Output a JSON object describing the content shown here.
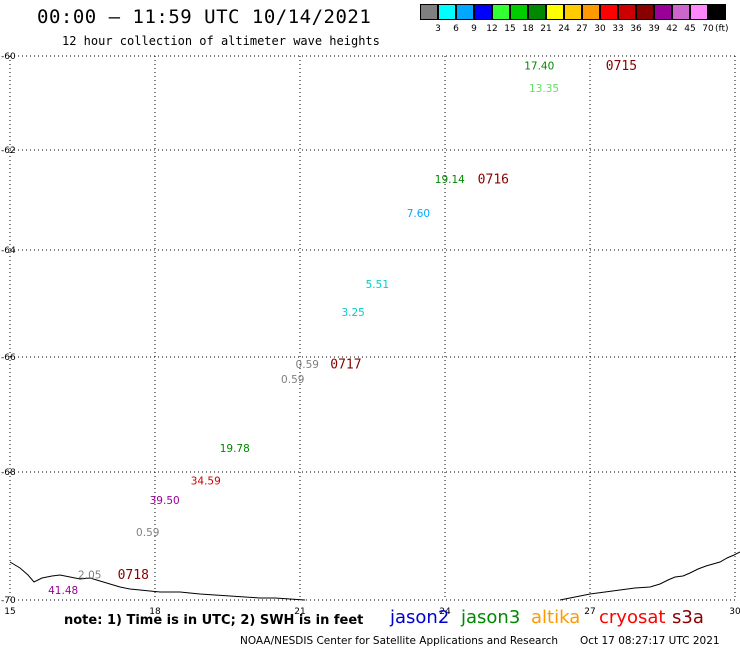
{
  "header": {
    "title": "00:00 – 11:59 UTC 10/14/2021",
    "subtitle": "12 hour collection of altimeter wave heights"
  },
  "legend": {
    "unit": "(ft)",
    "swatches": [
      {
        "color": "#808080",
        "label": "3"
      },
      {
        "color": "#00ffff",
        "label": "6"
      },
      {
        "color": "#00a8ff",
        "label": "9"
      },
      {
        "color": "#0000ff",
        "label": "12"
      },
      {
        "color": "#33ff33",
        "label": "15"
      },
      {
        "color": "#00cc00",
        "label": "18"
      },
      {
        "color": "#008800",
        "label": "21"
      },
      {
        "color": "#ffff00",
        "label": "24"
      },
      {
        "color": "#ffcc00",
        "label": "27"
      },
      {
        "color": "#ff9900",
        "label": "30"
      },
      {
        "color": "#ff0000",
        "label": "33"
      },
      {
        "color": "#cc0000",
        "label": "36"
      },
      {
        "color": "#880000",
        "label": "39"
      },
      {
        "color": "#990099",
        "label": "42"
      },
      {
        "color": "#cc66cc",
        "label": "45"
      },
      {
        "color": "#ff88ff",
        "label": "70"
      },
      {
        "color": "#000000",
        "label": ""
      }
    ]
  },
  "map": {
    "lon_range": [
      15,
      30
    ],
    "lat_range": [
      -70,
      -60
    ],
    "lon_ticks": [
      "15",
      "18",
      "21",
      "24",
      "27",
      "30"
    ],
    "lat_ticks": [
      "-60",
      "-62",
      "-64",
      "-66",
      "-68",
      "-70"
    ],
    "observations": [
      {
        "text": "17.40",
        "lon": 25.95,
        "lat": -60.22,
        "color": "#008800"
      },
      {
        "text": "0715",
        "lon": 27.65,
        "lat": -60.22,
        "color": "#880000",
        "pass": true
      },
      {
        "text": "13.35",
        "lon": 26.05,
        "lat": -60.7,
        "color": "#66dd66"
      },
      {
        "text": "19.14",
        "lon": 24.1,
        "lat": -62.6,
        "color": "#008800"
      },
      {
        "text": "0716",
        "lon": 25.0,
        "lat": -62.6,
        "color": "#880000",
        "pass": true
      },
      {
        "text": "7.60",
        "lon": 23.45,
        "lat": -63.28,
        "color": "#00a8ff"
      },
      {
        "text": "5.51",
        "lon": 22.6,
        "lat": -64.65,
        "color": "#00cccc"
      },
      {
        "text": "3.25",
        "lon": 22.1,
        "lat": -65.18,
        "color": "#00cccc"
      },
      {
        "text": "0.59",
        "lon": 21.15,
        "lat": -66.14,
        "color": "#808080"
      },
      {
        "text": "0717",
        "lon": 21.95,
        "lat": -66.14,
        "color": "#880000",
        "pass": true
      },
      {
        "text": "0.59",
        "lon": 20.85,
        "lat": -66.4,
        "color": "#808080"
      },
      {
        "text": "19.78",
        "lon": 19.65,
        "lat": -67.6,
        "color": "#008800"
      },
      {
        "text": "34.59",
        "lon": 19.05,
        "lat": -68.15,
        "color": "#cc0000"
      },
      {
        "text": "39.50",
        "lon": 18.2,
        "lat": -68.45,
        "color": "#990099"
      },
      {
        "text": "0.59",
        "lon": 17.85,
        "lat": -68.95,
        "color": "#808080"
      },
      {
        "text": "2.05",
        "lon": 16.65,
        "lat": -69.62,
        "color": "#808080"
      },
      {
        "text": "0718",
        "lon": 17.55,
        "lat": -69.62,
        "color": "#880000",
        "pass": true
      },
      {
        "text": "41.48",
        "lon": 16.1,
        "lat": -69.86,
        "color": "#990099"
      }
    ]
  },
  "footer": {
    "note": "note: 1) Time is in UTC; 2) SWH is in feet",
    "satellites": [
      {
        "name": "jason2",
        "color": "#0000cc"
      },
      {
        "name": "jason3",
        "color": "#008800"
      },
      {
        "name": "altika",
        "color": "#ff9900"
      },
      {
        "name": "cryosat",
        "color": "#ff0000"
      },
      {
        "name": "s3a",
        "color": "#880000"
      }
    ],
    "credit": "NOAA/NESDIS Center for Satellite Applications and Research",
    "timestamp": "Oct 17 08:27:17 UTC 2021"
  }
}
